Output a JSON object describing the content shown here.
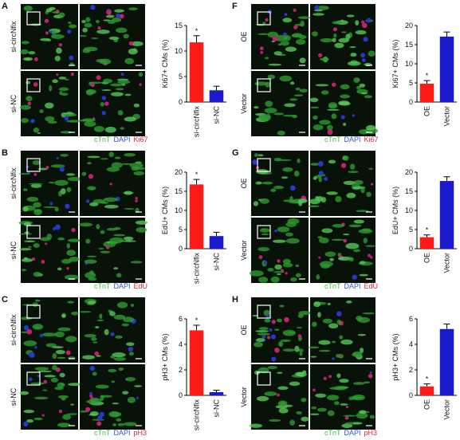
{
  "chart_data": [
    {
      "type": "bar",
      "panel": "A",
      "row_labels": [
        "si-circNfix",
        "si-NC"
      ],
      "stains": [
        "cTnT",
        "DAPI",
        "Ki67"
      ],
      "ylabel": "Ki67+ CMs (%)",
      "categories": [
        "si-circNfix",
        "si-NC"
      ],
      "values": [
        11.7,
        2.3
      ],
      "errors": [
        1.3,
        0.8
      ],
      "colors": [
        "#ff1a1a",
        "#1a1acc"
      ],
      "annotation": "*",
      "ylim": [
        0,
        15
      ],
      "yticks": [
        0,
        5,
        10,
        15
      ]
    },
    {
      "type": "bar",
      "panel": "B",
      "row_labels": [
        "si-circNfix",
        "si-NC"
      ],
      "stains": [
        "cTnT",
        "DAPI",
        "EdU"
      ],
      "ylabel": "EdU+ CMs (%)",
      "categories": [
        "si-circNfix",
        "si-NC"
      ],
      "values": [
        16.8,
        3.3
      ],
      "errors": [
        1.3,
        1.0
      ],
      "colors": [
        "#ff1a1a",
        "#1a1acc"
      ],
      "annotation": "*",
      "ylim": [
        0,
        20
      ],
      "yticks": [
        0,
        5,
        10,
        15,
        20
      ]
    },
    {
      "type": "bar",
      "panel": "C",
      "row_labels": [
        "si-circNfix",
        "si-NC"
      ],
      "stains": [
        "cTnT",
        "DAPI",
        "pH3"
      ],
      "ylabel": "pH3+ CMs (%)",
      "categories": [
        "si-circNfix",
        "si-NC"
      ],
      "values": [
        5.1,
        0.25
      ],
      "errors": [
        0.4,
        0.15
      ],
      "colors": [
        "#ff1a1a",
        "#1a1acc"
      ],
      "annotation": "*",
      "ylim": [
        0,
        6
      ],
      "yticks": [
        0,
        2,
        4,
        6
      ]
    },
    {
      "type": "bar",
      "panel": "F",
      "row_labels": [
        "OE",
        "Vector"
      ],
      "stains": [
        "cTnT",
        "DAPI",
        "Ki67"
      ],
      "ylabel": "Ki67+ CMs (%)",
      "categories": [
        "OE",
        "Vector"
      ],
      "values": [
        4.8,
        17.1
      ],
      "errors": [
        0.8,
        1.2
      ],
      "colors": [
        "#ff1a1a",
        "#1a1acc"
      ],
      "annotation": "*",
      "ylim": [
        0,
        20
      ],
      "yticks": [
        0,
        5,
        10,
        15,
        20
      ]
    },
    {
      "type": "bar",
      "panel": "G",
      "row_labels": [
        "OE",
        "Vector"
      ],
      "stains": [
        "cTnT",
        "DAPI",
        "EdU"
      ],
      "ylabel": "EdU+ CMs (%)",
      "categories": [
        "OE",
        "Vector"
      ],
      "values": [
        3.0,
        17.7
      ],
      "errors": [
        0.6,
        1.1
      ],
      "colors": [
        "#ff1a1a",
        "#1a1acc"
      ],
      "annotation": "*",
      "ylim": [
        0,
        20
      ],
      "yticks": [
        0,
        5,
        10,
        15,
        20
      ]
    },
    {
      "type": "bar",
      "panel": "H",
      "row_labels": [
        "OE",
        "Vector"
      ],
      "stains": [
        "cTnT",
        "DAPI",
        "pH3"
      ],
      "ylabel": "pH3+ CMs (%)",
      "categories": [
        "OE",
        "Vector"
      ],
      "values": [
        0.7,
        5.2
      ],
      "errors": [
        0.2,
        0.4
      ],
      "colors": [
        "#ff1a1a",
        "#1a1acc"
      ],
      "annotation": "*",
      "ylim": [
        0,
        6
      ],
      "yticks": [
        0,
        2,
        4,
        6
      ]
    }
  ]
}
